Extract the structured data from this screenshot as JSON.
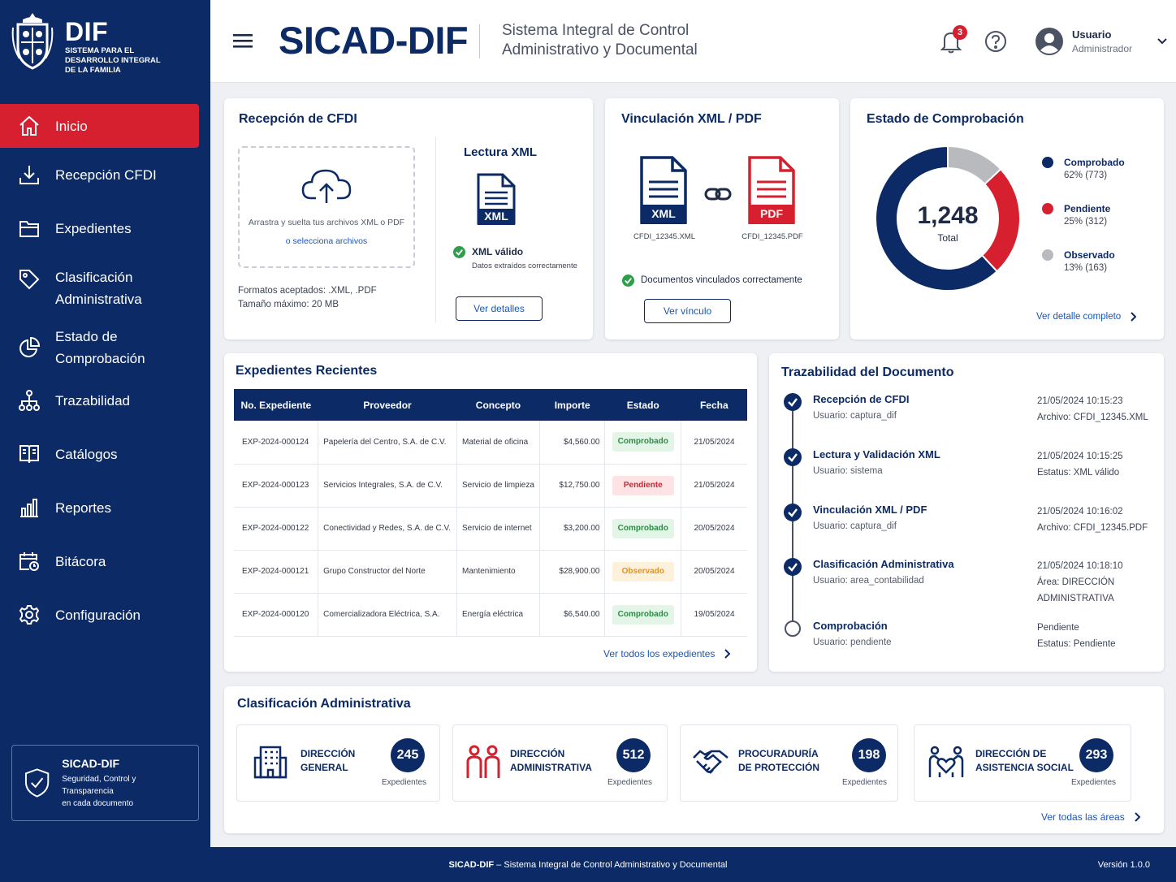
{
  "sidebar": {
    "logo_title": "DIF",
    "logo_subtitle": [
      "SISTEMA PARA EL",
      "DESARROLLO INTEGRAL",
      "DE LA FAMILIA"
    ],
    "items": [
      {
        "label": "Inicio",
        "icon": "home-icon",
        "active": true
      },
      {
        "label": "Recepción CFDI",
        "icon": "download-icon"
      },
      {
        "label": "Expedientes",
        "icon": "folder-icon"
      },
      {
        "label": "Clasificación Administrativa",
        "icon": "tag-icon"
      },
      {
        "label": "Estado de Comprobación",
        "icon": "pie-chart-icon"
      },
      {
        "label": "Trazabilidad",
        "icon": "hierarchy-icon"
      },
      {
        "label": "Catálogos",
        "icon": "book-icon"
      },
      {
        "label": "Reportes",
        "icon": "bar-chart-icon"
      },
      {
        "label": "Bitácora",
        "icon": "calendar-clock-icon"
      },
      {
        "label": "Configuración",
        "icon": "gear-icon"
      }
    ],
    "badge_title": "SICAD-DIF",
    "badge_desc_1": "Seguridad, Control y Transparencia",
    "badge_desc_2": "en cada documento"
  },
  "header": {
    "brand": "SICAD-DIF",
    "subtitle_1": "Sistema Integral de Control",
    "subtitle_2": "Administrativo y Documental",
    "notifications": "3",
    "user_name": "Usuario",
    "user_role": "Administrador"
  },
  "reception": {
    "title": "Recepción de CFDI",
    "drop_text": "Arrastra y suelta tus archivos XML o PDF",
    "drop_link": "o selecciona archivos",
    "formats": "Formatos aceptados: .XML, .PDF",
    "max_size": "Tamaño máximo: 20 MB",
    "xml_title": "Lectura XML",
    "xml_tag": "XML",
    "xml_status": "XML válido",
    "xml_status_desc": "Datos extraídos correctamente",
    "details_button": "Ver detalles"
  },
  "link_card": {
    "title": "Vinculación XML / PDF",
    "xml_tag": "XML",
    "pdf_tag": "PDF",
    "xml_file": "CFDI_12345.XML",
    "pdf_file": "CFDI_12345.PDF",
    "status": "Documentos vinculados correctamente",
    "button": "Ver vínculo"
  },
  "status_card": {
    "title": "Estado de Comprobación",
    "total": "1,248",
    "total_label": "Total",
    "legend": [
      {
        "name": "Comprobado",
        "detail": "62% (773)",
        "color": "#0c2a66"
      },
      {
        "name": "Pendiente",
        "detail": "25% (312)",
        "color": "#d6202f"
      },
      {
        "name": "Observado",
        "detail": "13% (163)",
        "color": "#b8babd"
      }
    ],
    "link": "Ver detalle completo"
  },
  "chart_data": {
    "type": "pie",
    "categories": [
      "Comprobado",
      "Pendiente",
      "Observado"
    ],
    "values": [
      773,
      312,
      163
    ],
    "percent": [
      62,
      25,
      13
    ],
    "colors": [
      "#0c2a66",
      "#d6202f",
      "#b8babd"
    ]
  },
  "recent": {
    "title": "Expedientes Recientes",
    "columns": [
      "No. Expediente",
      "Proveedor",
      "Concepto",
      "Importe",
      "Estado",
      "Fecha"
    ],
    "rows": [
      [
        "EXP-2024-000124",
        "Papelería del Centro, S.A. de C.V.",
        "Material de oficina",
        "$4,560.00",
        "Comprobado",
        "21/05/2024"
      ],
      [
        "EXP-2024-000123",
        "Servicios Integrales, S.A. de C.V.",
        "Servicio de limpieza",
        "$12,750.00",
        "Pendiente",
        "21/05/2024"
      ],
      [
        "EXP-2024-000122",
        "Conectividad y Redes, S.A. de C.V.",
        "Servicio de internet",
        "$3,200.00",
        "Comprobado",
        "20/05/2024"
      ],
      [
        "EXP-2024-000121",
        "Grupo Constructor del Norte",
        "Mantenimiento",
        "$28,900.00",
        "Observado",
        "20/05/2024"
      ],
      [
        "EXP-2024-000120",
        "Comercializadora Eléctrica, S.A.",
        "Energía eléctrica",
        "$6,540.00",
        "Comprobado",
        "19/05/2024"
      ]
    ],
    "link": "Ver todos los expedientes"
  },
  "trace": {
    "title": "Trazabilidad del Documento",
    "steps": [
      {
        "title": "Recepción de CFDI",
        "user": "Usuario: captura_dif",
        "right": [
          "21/05/2024 10:15:23",
          "Archivo: CFDI_12345.XML"
        ],
        "done": true
      },
      {
        "title": "Lectura y Validación XML",
        "user": "Usuario: sistema",
        "right": [
          "21/05/2024 10:15:25",
          "Estatus: XML válido"
        ],
        "done": true
      },
      {
        "title": "Vinculación XML / PDF",
        "user": "Usuario: captura_dif",
        "right": [
          "21/05/2024 10:16:02",
          "Archivo: CFDI_12345.PDF"
        ],
        "done": true
      },
      {
        "title": "Clasificación Administrativa",
        "user": "Usuario: area_contabilidad",
        "right": [
          "21/05/2024 10:18:10",
          "Área: DIRECCIÓN",
          "ADMINISTRATIVA"
        ],
        "done": true
      },
      {
        "title": "Comprobación",
        "user": "Usuario: pendiente",
        "right": [
          "Pendiente",
          "Estatus: Pendiente"
        ],
        "done": false
      }
    ]
  },
  "classification": {
    "title": "Clasificación Administrativa",
    "areas": [
      {
        "name_1": "DIRECCIÓN",
        "name_2": "GENERAL",
        "count": "245",
        "sub": "Expedientes",
        "icon": "building-icon"
      },
      {
        "name_1": "DIRECCIÓN",
        "name_2": "ADMINISTRATIVA",
        "count": "512",
        "sub": "Expedientes",
        "icon": "people-icon"
      },
      {
        "name_1": "PROCURADURÍA",
        "name_2": "DE PROTECCIÓN",
        "count": "198",
        "sub": "Expedientes",
        "icon": "handshake-icon"
      },
      {
        "name_1": "DIRECCIÓN DE",
        "name_2": "ASISTENCIA SOCIAL",
        "count": "293",
        "sub": "Expedientes",
        "icon": "family-heart-icon"
      }
    ],
    "link": "Ver todas las áreas"
  },
  "footer": {
    "brand": "SICAD-DIF",
    "text": " – Sistema Integral de Control Administrativo y Documental",
    "version": "Versión 1.0.0"
  }
}
